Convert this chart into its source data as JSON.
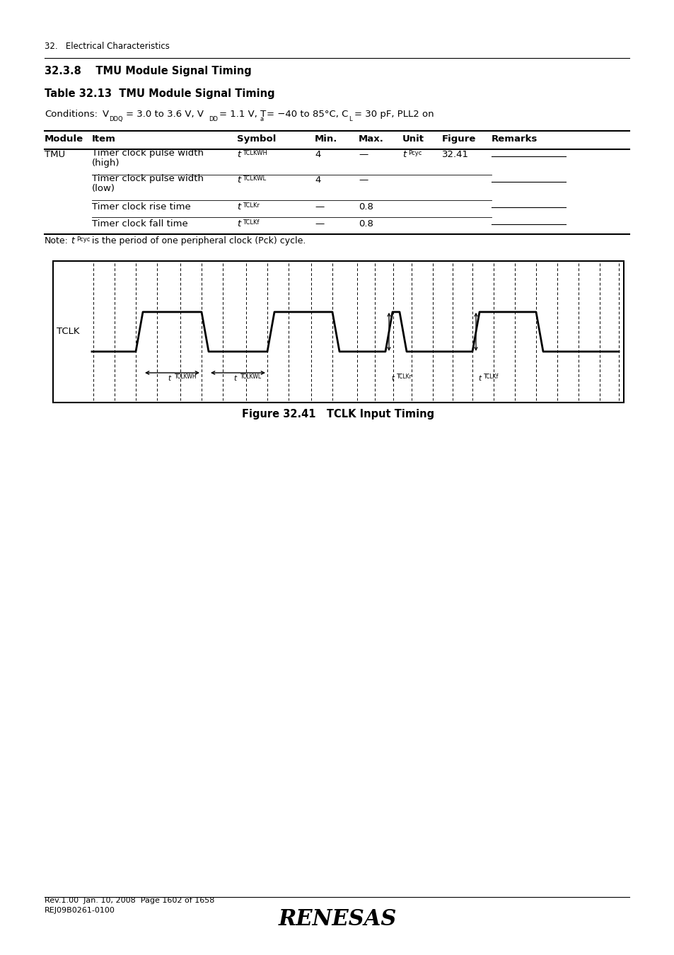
{
  "page_header": "32.   Electrical Characteristics",
  "section_title": "32.3.8    TMU Module Signal Timing",
  "table_title": "Table 32.13  TMU Module Signal Timing",
  "table_headers": [
    "Module",
    "Item",
    "Symbol",
    "Min.",
    "Max.",
    "Unit",
    "Figure",
    "Remarks"
  ],
  "figure_caption": "Figure 32.41   TCLK Input Timing",
  "footer_line1": "Rev.1.00  Jan. 10, 2008  Page 1602 of 1658",
  "footer_line2": "REJ09B0261-0100",
  "bg_color": "#ffffff",
  "line_color": "#000000"
}
